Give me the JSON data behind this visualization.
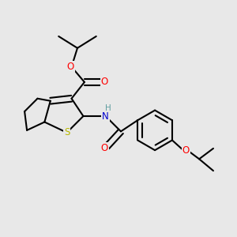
{
  "bg_color": "#e8e8e8",
  "bond_color": "#000000",
  "bond_width": 1.5,
  "atom_colors": {
    "O": "#ff0000",
    "N": "#0000cd",
    "S": "#b8b800",
    "H": "#5f9ea0",
    "C": "#000000"
  },
  "font_size": 8.5,
  "fig_width": 3.0,
  "fig_height": 3.0,
  "dpi": 100
}
